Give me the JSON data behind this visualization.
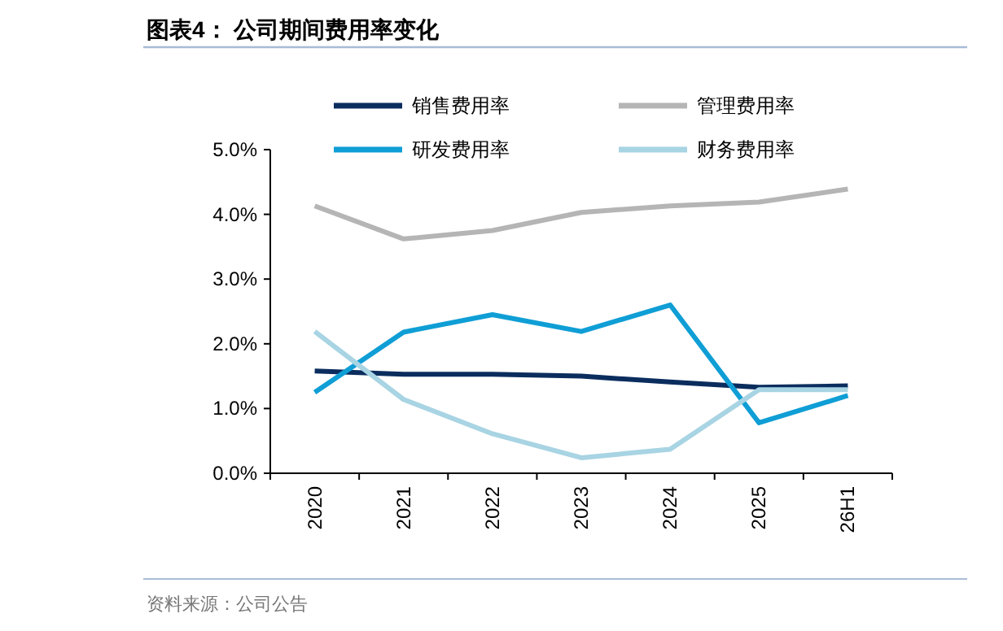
{
  "chart_data": {
    "type": "line",
    "title": "图表4：  公司期间费用率变化",
    "categories": [
      "2020",
      "2021",
      "2022",
      "2023",
      "2024",
      "2025",
      "26H1"
    ],
    "series": [
      {
        "name": "销售费用率",
        "color": "#0b2d5e",
        "values": [
          1.58,
          1.53,
          1.53,
          1.5,
          1.41,
          1.33,
          1.35
        ]
      },
      {
        "name": "管理费用率",
        "color": "#b5b5b5",
        "values": [
          4.13,
          3.62,
          3.75,
          4.03,
          4.13,
          4.19,
          4.39
        ]
      },
      {
        "name": "研发费用率",
        "color": "#0f9ed5",
        "values": [
          1.25,
          2.18,
          2.45,
          2.19,
          2.6,
          0.78,
          1.2
        ]
      },
      {
        "name": "财务费用率",
        "color": "#a8d4e3",
        "values": [
          2.19,
          1.14,
          0.61,
          0.24,
          0.37,
          1.29,
          1.29
        ]
      }
    ],
    "ylim": [
      0,
      5
    ],
    "yticks": [
      {
        "value": 0,
        "label": "0.0%"
      },
      {
        "value": 1,
        "label": "1.0%"
      },
      {
        "value": 2,
        "label": "2.0%"
      },
      {
        "value": 3,
        "label": "3.0%"
      },
      {
        "value": 4,
        "label": "4.0%"
      },
      {
        "value": 5,
        "label": "5.0%"
      }
    ],
    "grid": false,
    "legend": "top",
    "marker": "none",
    "line_style": "solid",
    "annotations": [
      "资料来源：公司公告"
    ]
  }
}
